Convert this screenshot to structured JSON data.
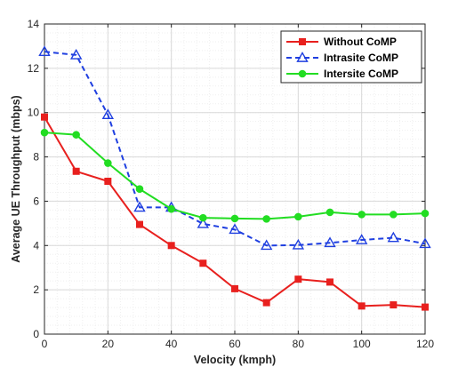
{
  "chart_data": {
    "type": "line",
    "xlabel": "Velocity (kmph)",
    "ylabel": "Average UE Throughput (mbps)",
    "xlim": [
      0,
      120
    ],
    "ylim": [
      0,
      14
    ],
    "x_ticks": [
      "0",
      "20",
      "40",
      "60",
      "80",
      "100",
      "120"
    ],
    "y_ticks": [
      "0",
      "2",
      "4",
      "6",
      "8",
      "10",
      "12",
      "14"
    ],
    "grid": true,
    "legend_position": "top-right",
    "x": [
      0,
      10,
      20,
      30,
      40,
      50,
      60,
      70,
      80,
      90,
      100,
      110,
      120
    ],
    "series": [
      {
        "name": "Without CoMP",
        "color": "#e8201e",
        "line_style": "solid",
        "marker": "square",
        "values": [
          9.8,
          7.35,
          6.9,
          4.95,
          4.0,
          3.2,
          2.05,
          1.42,
          2.48,
          2.35,
          1.27,
          1.32,
          1.22
        ]
      },
      {
        "name": "Intrasite CoMP",
        "color": "#1f3fe0",
        "line_style": "dashed",
        "marker": "triangle",
        "values": [
          12.75,
          12.6,
          9.9,
          5.72,
          5.72,
          4.98,
          4.72,
          4.0,
          4.02,
          4.12,
          4.25,
          4.35,
          4.08
        ]
      },
      {
        "name": "Intersite CoMP",
        "color": "#22dd22",
        "line_style": "solid",
        "marker": "circle",
        "values": [
          9.1,
          9.0,
          7.72,
          6.55,
          5.65,
          5.25,
          5.22,
          5.2,
          5.3,
          5.5,
          5.4,
          5.4,
          5.45
        ]
      }
    ]
  }
}
